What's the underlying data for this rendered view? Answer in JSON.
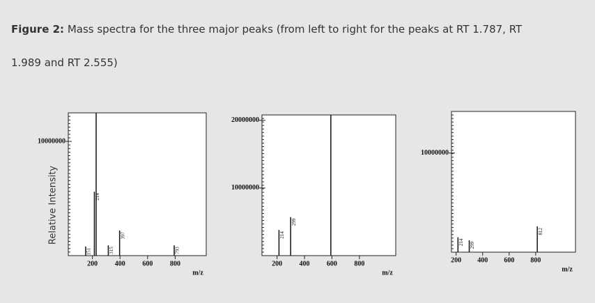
{
  "caption": {
    "label": "Figure 2:",
    "text": "Mass spectra for the three major peaks (from left to right for the peaks at RT 1.787, RT 1.989 and RT 2.555)"
  },
  "chart_data": [
    {
      "type": "stem",
      "y_label": "Relative Intensity",
      "x_label": "m/z",
      "color": "#111111",
      "x": [
        151,
        214,
        227,
        315,
        397,
        793
      ],
      "values": [
        800000,
        5600000,
        12500000,
        900000,
        2200000,
        900000
      ],
      "peak_labels": [
        "151",
        "214",
        null,
        "315",
        "397",
        "793"
      ],
      "xlim": [
        25,
        1025
      ],
      "xticks": [
        200,
        400,
        600,
        800
      ],
      "ylim": [
        0,
        12500000
      ],
      "yticks": [
        10000000
      ],
      "grid": false
    },
    {
      "type": "stem",
      "x_label": "m/z",
      "color": "#111111",
      "x": [
        214,
        299,
        592
      ],
      "values": [
        3800000,
        5700000,
        20800000
      ],
      "peak_labels": [
        "214",
        "299",
        null
      ],
      "xlim": [
        90,
        1065
      ],
      "xticks": [
        200,
        400,
        600,
        800
      ],
      "ylim": [
        0,
        20800000
      ],
      "yticks": [
        10000000,
        20000000
      ],
      "grid": false
    },
    {
      "type": "stem",
      "x_label": "m/z",
      "color": "#111111",
      "x": [
        214,
        299,
        812
      ],
      "values": [
        1500000,
        1200000,
        2600000
      ],
      "peak_labels": [
        "214",
        "299",
        "812"
      ],
      "xlim": [
        165,
        1100
      ],
      "xticks": [
        200,
        400,
        600,
        800
      ],
      "ylim": [
        0,
        14200000
      ],
      "yticks": [
        10000000
      ],
      "grid": false
    }
  ]
}
